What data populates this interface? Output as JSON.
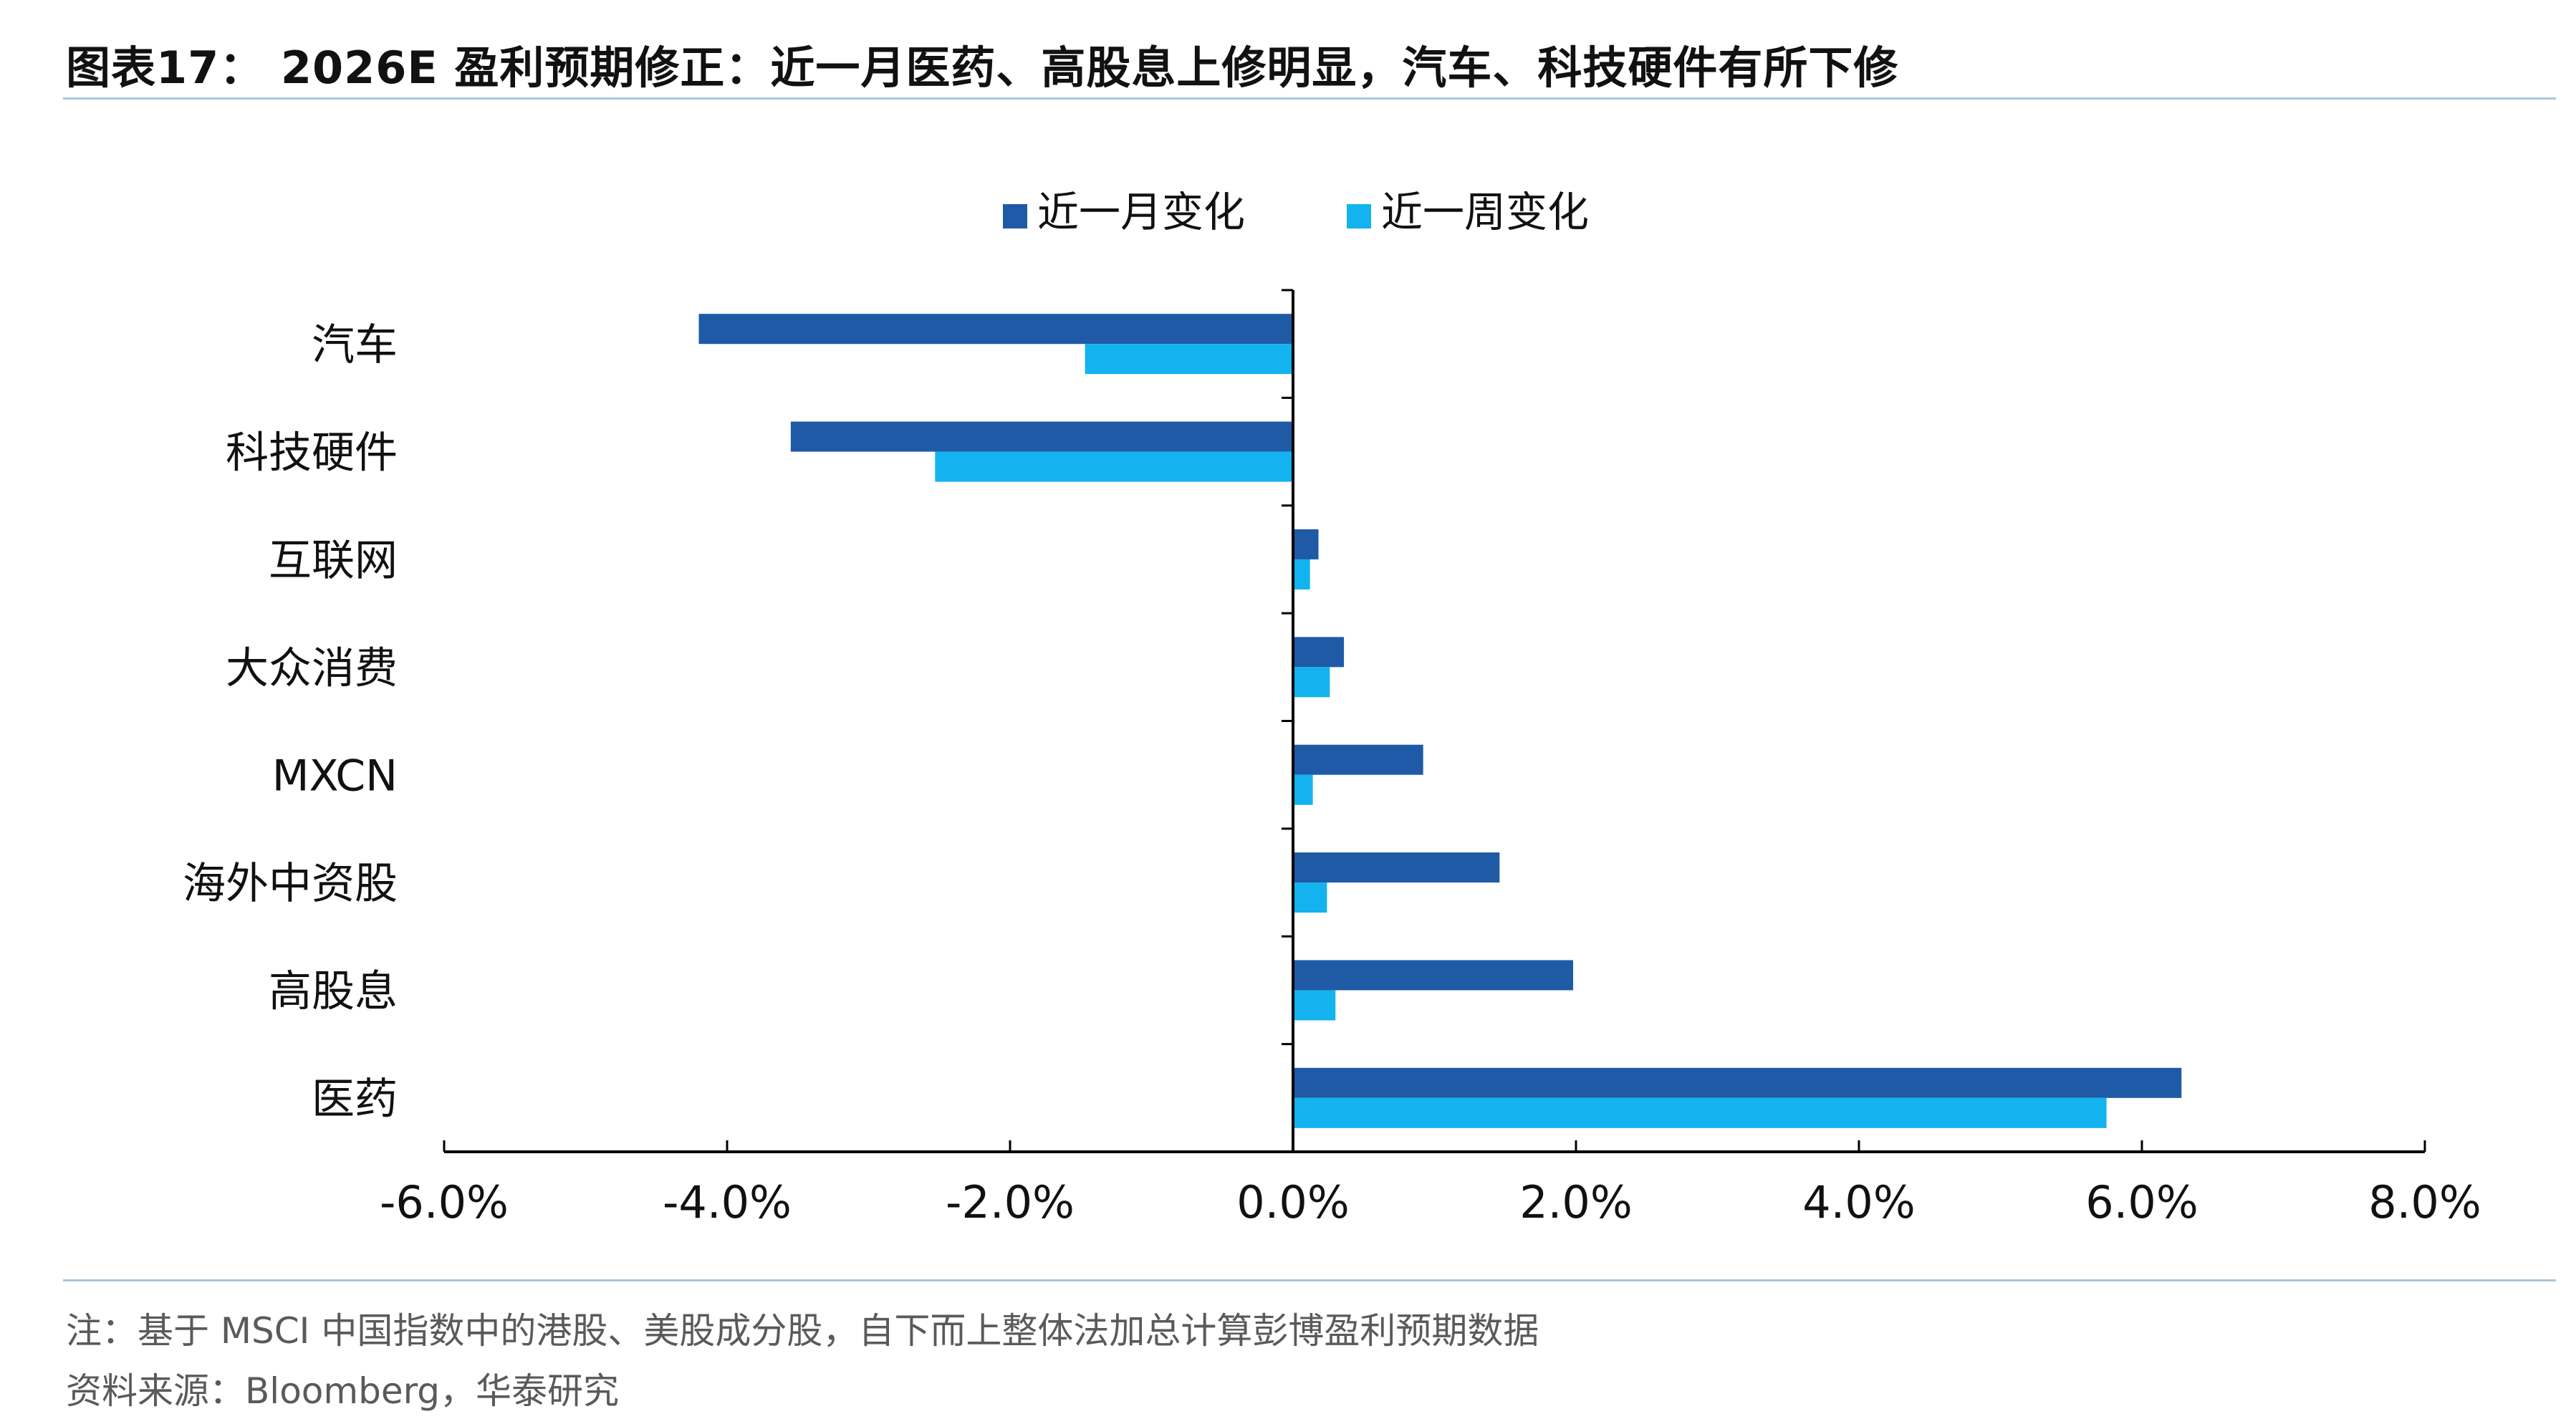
{
  "header": {
    "title": "图表17： 2026E 盈利预期修正：近一月医药、高股息上修明显，汽车、科技硬件有所下修"
  },
  "footer": {
    "note": "注：基于 MSCI 中国指数中的港股、美股成分股，自下而上整体法加总计算彭博盈利预期数据",
    "source": "资料来源：Bloomberg，华泰研究"
  },
  "chart_data": {
    "type": "bar",
    "orientation": "horizontal",
    "categories": [
      "汽车",
      "科技硬件",
      "互联网",
      "大众消费",
      "MXCN",
      "海外中资股",
      "高股息",
      "医药"
    ],
    "series": [
      {
        "name": "近一月变化",
        "color": "#1f5aa6",
        "values": [
          -4.2,
          -3.55,
          0.18,
          0.36,
          0.92,
          1.46,
          1.98,
          6.28
        ]
      },
      {
        "name": "近一周变化",
        "color": "#12b3ef",
        "values": [
          -1.47,
          -2.53,
          0.12,
          0.26,
          0.14,
          0.24,
          0.3,
          5.75
        ]
      }
    ],
    "xlim": [
      -6.0,
      8.0
    ],
    "xticks": [
      "-6.0%",
      "-4.0%",
      "-2.0%",
      "0.0%",
      "2.0%",
      "4.0%",
      "6.0%",
      "8.0%"
    ],
    "xtick_values": [
      -6,
      -4,
      -2,
      0,
      2,
      4,
      6,
      8
    ],
    "grid": false,
    "legend_position": "top-center"
  }
}
